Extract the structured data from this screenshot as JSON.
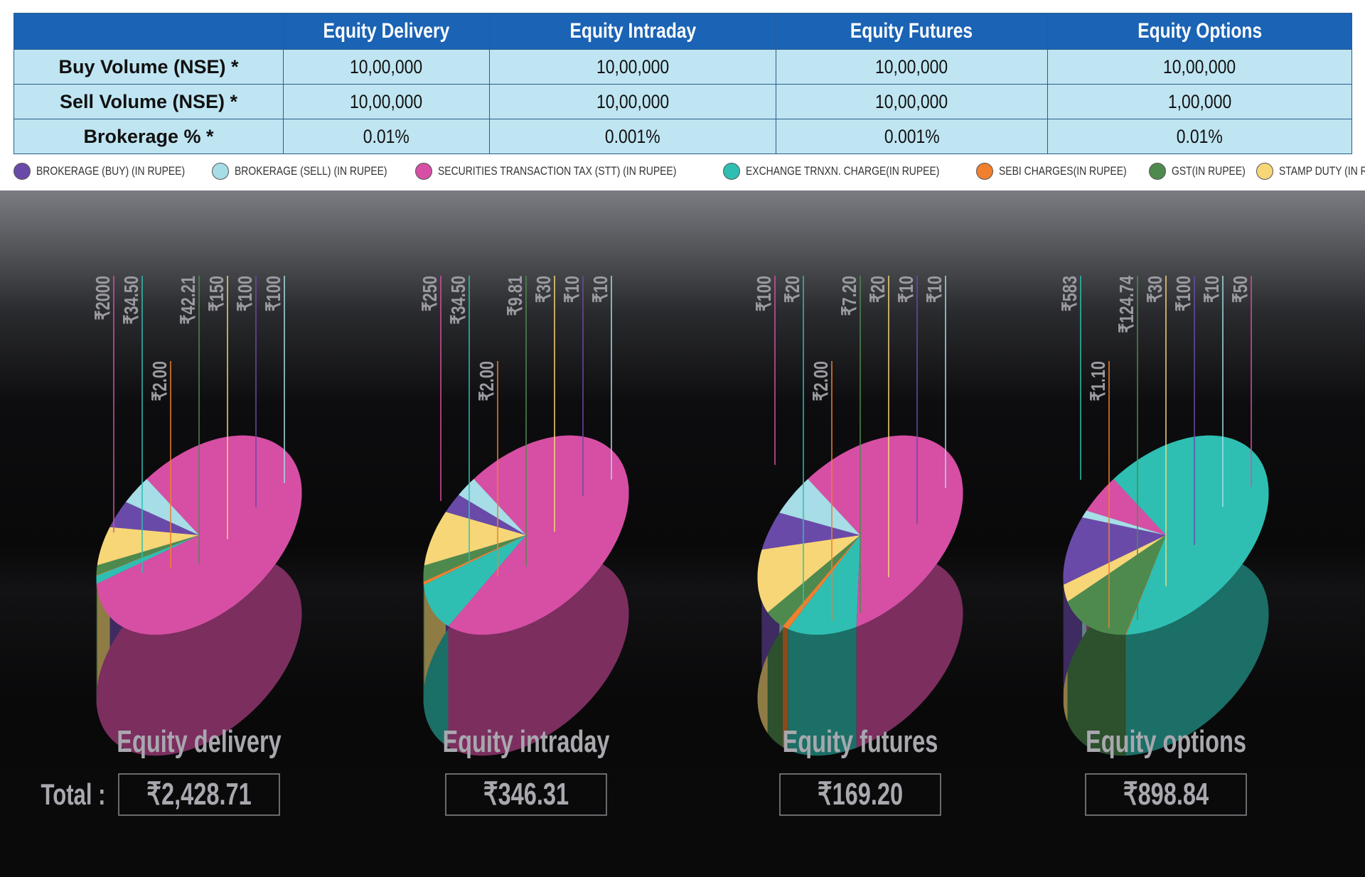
{
  "table": {
    "columns": [
      "",
      "Equity Delivery",
      "Equity Intraday",
      "Equity Futures",
      "Equity Options"
    ],
    "rows": [
      {
        "label": "Buy Volume (NSE) *",
        "values": [
          "10,00,000",
          "10,00,000",
          "10,00,000",
          "10,00,000"
        ]
      },
      {
        "label": "Sell Volume (NSE) *",
        "values": [
          "10,00,000",
          "10,00,000",
          "10,00,000",
          "1,00,000"
        ]
      },
      {
        "label": "Brokerage % *",
        "values": [
          "0.01%",
          "0.001%",
          "0.001%",
          "0.01%"
        ]
      }
    ]
  },
  "legend": [
    {
      "label": "BROKERAGE (BUY) (IN RUPEE)",
      "color": "#6a4aa8"
    },
    {
      "label": "BROKERAGE (SELL) (IN RUPEE)",
      "color": "#a6dde6"
    },
    {
      "label": "SECURITIES TRANSACTION TAX (STT)  (IN RUPEE)",
      "color": "#d64fa4"
    },
    {
      "label": "EXCHANGE TRNXN. CHARGE(IN RUPEE)",
      "color": "#2ebfb2"
    },
    {
      "label": "SEBI CHARGES(IN RUPEE)",
      "color": "#f07f2e"
    },
    {
      "label": "GST(IN RUPEE)",
      "color": "#4e8a4e"
    },
    {
      "label": "STAMP DUTY (IN RUPEE)",
      "color": "#f7d677"
    }
  ],
  "total_label": "Total :",
  "chart_data": [
    {
      "type": "pie",
      "title": "Equity delivery",
      "total": "₹2,428.71",
      "slices": [
        {
          "name": "STT",
          "value": 2000,
          "label": "₹2000"
        },
        {
          "name": "Exchange",
          "value": 34.5,
          "label": "₹34.50"
        },
        {
          "name": "SEBI",
          "value": 2.0,
          "label": "₹2.00"
        },
        {
          "name": "GST",
          "value": 42.21,
          "label": "₹42.21"
        },
        {
          "name": "Stamp",
          "value": 150,
          "label": "₹150"
        },
        {
          "name": "BrokerageBuy",
          "value": 100,
          "label": "₹100"
        },
        {
          "name": "BrokerageSell",
          "value": 100,
          "label": "₹100"
        }
      ]
    },
    {
      "type": "pie",
      "title": "Equity intraday",
      "total": "₹346.31",
      "slices": [
        {
          "name": "STT",
          "value": 250,
          "label": "₹250"
        },
        {
          "name": "Exchange",
          "value": 34.5,
          "label": "₹34.50"
        },
        {
          "name": "SEBI",
          "value": 2.0,
          "label": "₹2.00"
        },
        {
          "name": "GST",
          "value": 9.81,
          "label": "₹9.81"
        },
        {
          "name": "Stamp",
          "value": 30,
          "label": "₹30"
        },
        {
          "name": "BrokerageBuy",
          "value": 10,
          "label": "₹10"
        },
        {
          "name": "BrokerageSell",
          "value": 10,
          "label": "₹10"
        }
      ]
    },
    {
      "type": "pie",
      "title": "Equity futures",
      "total": "₹169.20",
      "slices": [
        {
          "name": "STT",
          "value": 100,
          "label": "₹100"
        },
        {
          "name": "Exchange",
          "value": 20,
          "label": "₹20"
        },
        {
          "name": "SEBI",
          "value": 2.0,
          "label": "₹2.00"
        },
        {
          "name": "GST",
          "value": 7.2,
          "label": "₹7.20"
        },
        {
          "name": "Stamp",
          "value": 20,
          "label": "₹20"
        },
        {
          "name": "BrokerageBuy",
          "value": 10,
          "label": "₹10"
        },
        {
          "name": "BrokerageSell",
          "value": 10,
          "label": "₹10"
        }
      ]
    },
    {
      "type": "pie",
      "title": "Equity options",
      "total": "₹898.84",
      "slices": [
        {
          "name": "Exchange",
          "value": 583,
          "label": "₹583"
        },
        {
          "name": "SEBI",
          "value": 1.1,
          "label": "₹1.10"
        },
        {
          "name": "GST",
          "value": 124.74,
          "label": "₹124.74"
        },
        {
          "name": "Stamp",
          "value": 30,
          "label": "₹30"
        },
        {
          "name": "BrokerageBuy",
          "value": 100,
          "label": "₹100"
        },
        {
          "name": "BrokerageSell",
          "value": 10,
          "label": "₹10"
        },
        {
          "name": "STT",
          "value": 50,
          "label": "₹50"
        }
      ]
    }
  ]
}
